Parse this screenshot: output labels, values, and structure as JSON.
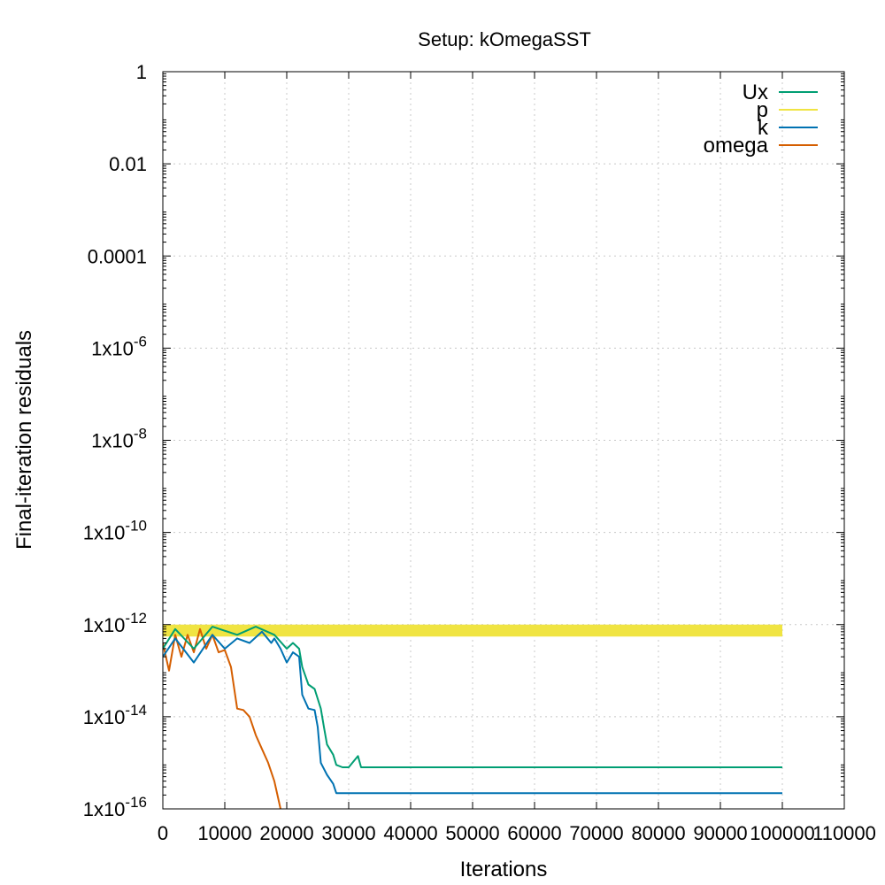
{
  "chart_data": {
    "type": "line",
    "title": "Setup: kOmegaSST",
    "xlabel": "Iterations",
    "ylabel": "Final-iteration residuals",
    "xscale": "linear",
    "yscale": "log",
    "xlim": [
      0,
      110000
    ],
    "ylim": [
      1e-16,
      1
    ],
    "grid": true,
    "legend_position": "top-right",
    "x_ticks": [
      0,
      10000,
      20000,
      30000,
      40000,
      50000,
      60000,
      70000,
      80000,
      90000,
      100000,
      110000
    ],
    "x_tick_labels": [
      "0",
      "10000",
      "20000",
      "30000",
      "40000",
      "50000",
      "60000",
      "70000",
      "80000",
      "90000",
      "100000",
      "110000"
    ],
    "y_ticks": [
      1,
      0.01,
      0.0001,
      1e-06,
      1e-08,
      1e-10,
      1e-12,
      1e-14,
      1e-16
    ],
    "y_tick_labels": [
      {
        "mantissa": "1",
        "exponent": ""
      },
      {
        "mantissa": "0.01",
        "exponent": ""
      },
      {
        "mantissa": "0.0001",
        "exponent": ""
      },
      {
        "mantissa": "1x10",
        "exponent": "-6"
      },
      {
        "mantissa": "1x10",
        "exponent": "-8"
      },
      {
        "mantissa": "1x10",
        "exponent": "-10"
      },
      {
        "mantissa": "1x10",
        "exponent": "-12"
      },
      {
        "mantissa": "1x10",
        "exponent": "-14"
      },
      {
        "mantissa": "1x10",
        "exponent": "-16"
      }
    ],
    "series": [
      {
        "name": "Ux",
        "color": "#009e73",
        "points": [
          [
            0,
            3e-13
          ],
          [
            2000,
            8e-13
          ],
          [
            5000,
            3e-13
          ],
          [
            8000,
            9e-13
          ],
          [
            12000,
            6e-13
          ],
          [
            15000,
            9e-13
          ],
          [
            18000,
            6e-13
          ],
          [
            20000,
            3e-13
          ],
          [
            21000,
            4e-13
          ],
          [
            22000,
            3e-13
          ],
          [
            22500,
            1.2e-13
          ],
          [
            23500,
            5e-14
          ],
          [
            24500,
            4e-14
          ],
          [
            25500,
            1.5e-14
          ],
          [
            26000,
            6e-15
          ],
          [
            26500,
            2.5e-15
          ],
          [
            27500,
            1.5e-15
          ],
          [
            28000,
            9e-16
          ],
          [
            29000,
            8e-16
          ],
          [
            30000,
            8e-16
          ],
          [
            31500,
            1.4e-15
          ],
          [
            32000,
            8e-16
          ],
          [
            40000,
            8e-16
          ],
          [
            50000,
            8e-16
          ],
          [
            60000,
            8e-16
          ],
          [
            70000,
            8e-16
          ],
          [
            80000,
            8e-16
          ],
          [
            90000,
            8e-16
          ],
          [
            100000,
            8e-16
          ]
        ]
      },
      {
        "name": "p",
        "color": "#f0e442",
        "band": [
          5.5e-13,
          1e-12
        ],
        "points": [
          [
            0,
            5.5e-13
          ],
          [
            100000,
            1e-12
          ]
        ]
      },
      {
        "name": "k",
        "color": "#0072b2",
        "points": [
          [
            0,
            2e-13
          ],
          [
            2000,
            5e-13
          ],
          [
            5000,
            1.5e-13
          ],
          [
            8000,
            6e-13
          ],
          [
            10000,
            3e-13
          ],
          [
            12000,
            5e-13
          ],
          [
            14000,
            4e-13
          ],
          [
            16000,
            7e-13
          ],
          [
            17500,
            4e-13
          ],
          [
            18000,
            5e-13
          ],
          [
            19000,
            3e-13
          ],
          [
            20000,
            1.5e-13
          ],
          [
            21000,
            2.5e-13
          ],
          [
            22000,
            2e-13
          ],
          [
            22500,
            3e-14
          ],
          [
            23500,
            1.5e-14
          ],
          [
            24500,
            1.4e-14
          ],
          [
            25000,
            6e-15
          ],
          [
            25500,
            1e-15
          ],
          [
            26500,
            5.5e-16
          ],
          [
            27500,
            3.5e-16
          ],
          [
            28000,
            2.2e-16
          ],
          [
            30000,
            2.2e-16
          ],
          [
            40000,
            2.2e-16
          ],
          [
            50000,
            2.2e-16
          ],
          [
            60000,
            2.2e-16
          ],
          [
            70000,
            2.2e-16
          ],
          [
            80000,
            2.2e-16
          ],
          [
            90000,
            2.2e-16
          ],
          [
            100000,
            2.2e-16
          ]
        ]
      },
      {
        "name": "omega",
        "color": "#d55e00",
        "points": [
          [
            0,
            4e-13
          ],
          [
            1000,
            1e-13
          ],
          [
            2000,
            6e-13
          ],
          [
            3000,
            2e-13
          ],
          [
            4000,
            6e-13
          ],
          [
            5000,
            2.5e-13
          ],
          [
            6000,
            8e-13
          ],
          [
            7000,
            3e-13
          ],
          [
            8000,
            6e-13
          ],
          [
            9000,
            2.5e-13
          ],
          [
            10000,
            2.8e-13
          ],
          [
            11000,
            1.2e-13
          ],
          [
            12000,
            1.5e-14
          ],
          [
            13000,
            1.4e-14
          ],
          [
            14000,
            1e-14
          ],
          [
            15000,
            4e-15
          ],
          [
            16000,
            2e-15
          ],
          [
            17000,
            1e-15
          ],
          [
            18000,
            4e-16
          ],
          [
            19000,
            1e-16
          ]
        ]
      }
    ]
  }
}
